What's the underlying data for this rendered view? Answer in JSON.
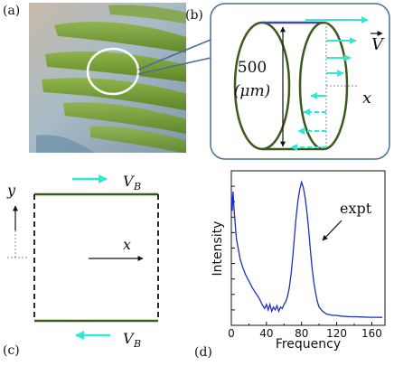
{
  "panels": {
    "a": {
      "label": "(a)"
    },
    "b": {
      "label": "(b)",
      "height_value": "500",
      "height_unit": "(μm)",
      "velocity_symbol": "V",
      "x_symbol": "x"
    },
    "c": {
      "label": "(c)",
      "y_symbol": "y",
      "x_symbol": "x",
      "top_wall_velocity": "V",
      "top_wall_velocity_sub": "B",
      "bottom_wall_velocity": "V",
      "bottom_wall_velocity_sub": "B"
    },
    "d": {
      "label": "(d)",
      "annotation": "expt"
    }
  },
  "colors": {
    "arrow": "#33e6d4",
    "wall": "#3d5a1e",
    "spectrum": "#1f2fc0",
    "callout": "#4a6f95",
    "leaf": "#6f9a2d",
    "background_blur": "#a8b9c4"
  },
  "chart_data": {
    "type": "line",
    "xlabel": "Frequency",
    "ylabel": "Intensity",
    "xticks": [
      "0",
      "40",
      "80",
      "120",
      "160"
    ],
    "xlim": [
      0,
      175
    ],
    "ylim": [
      0,
      1
    ],
    "series": [
      {
        "values_x": [
          0,
          1,
          2,
          3,
          4,
          5,
          6,
          8,
          10,
          13,
          16,
          20,
          24,
          28,
          32,
          35,
          38,
          40,
          42,
          44,
          46,
          48,
          50,
          52,
          54,
          56,
          58,
          60,
          62,
          64,
          66,
          68,
          70,
          72,
          74,
          76,
          78,
          80,
          82,
          84,
          86,
          88,
          90,
          92,
          94,
          96,
          98,
          100,
          104,
          108,
          112,
          116,
          120,
          124,
          130,
          136,
          142,
          150,
          158,
          166,
          172
        ],
        "values_y": [
          0.92,
          0.78,
          0.92,
          0.8,
          0.72,
          0.63,
          0.57,
          0.5,
          0.43,
          0.37,
          0.32,
          0.27,
          0.22,
          0.18,
          0.14,
          0.1,
          0.07,
          0.1,
          0.06,
          0.1,
          0.05,
          0.08,
          0.06,
          0.09,
          0.05,
          0.08,
          0.07,
          0.1,
          0.12,
          0.16,
          0.22,
          0.32,
          0.45,
          0.6,
          0.75,
          0.86,
          0.94,
          0.99,
          0.95,
          0.88,
          0.78,
          0.65,
          0.5,
          0.36,
          0.26,
          0.18,
          0.12,
          0.08,
          0.05,
          0.03,
          0.025,
          0.02,
          0.02,
          0.015,
          0.012,
          0.01,
          0.01,
          0.008,
          0.006,
          0.006,
          0.005
        ]
      }
    ]
  }
}
